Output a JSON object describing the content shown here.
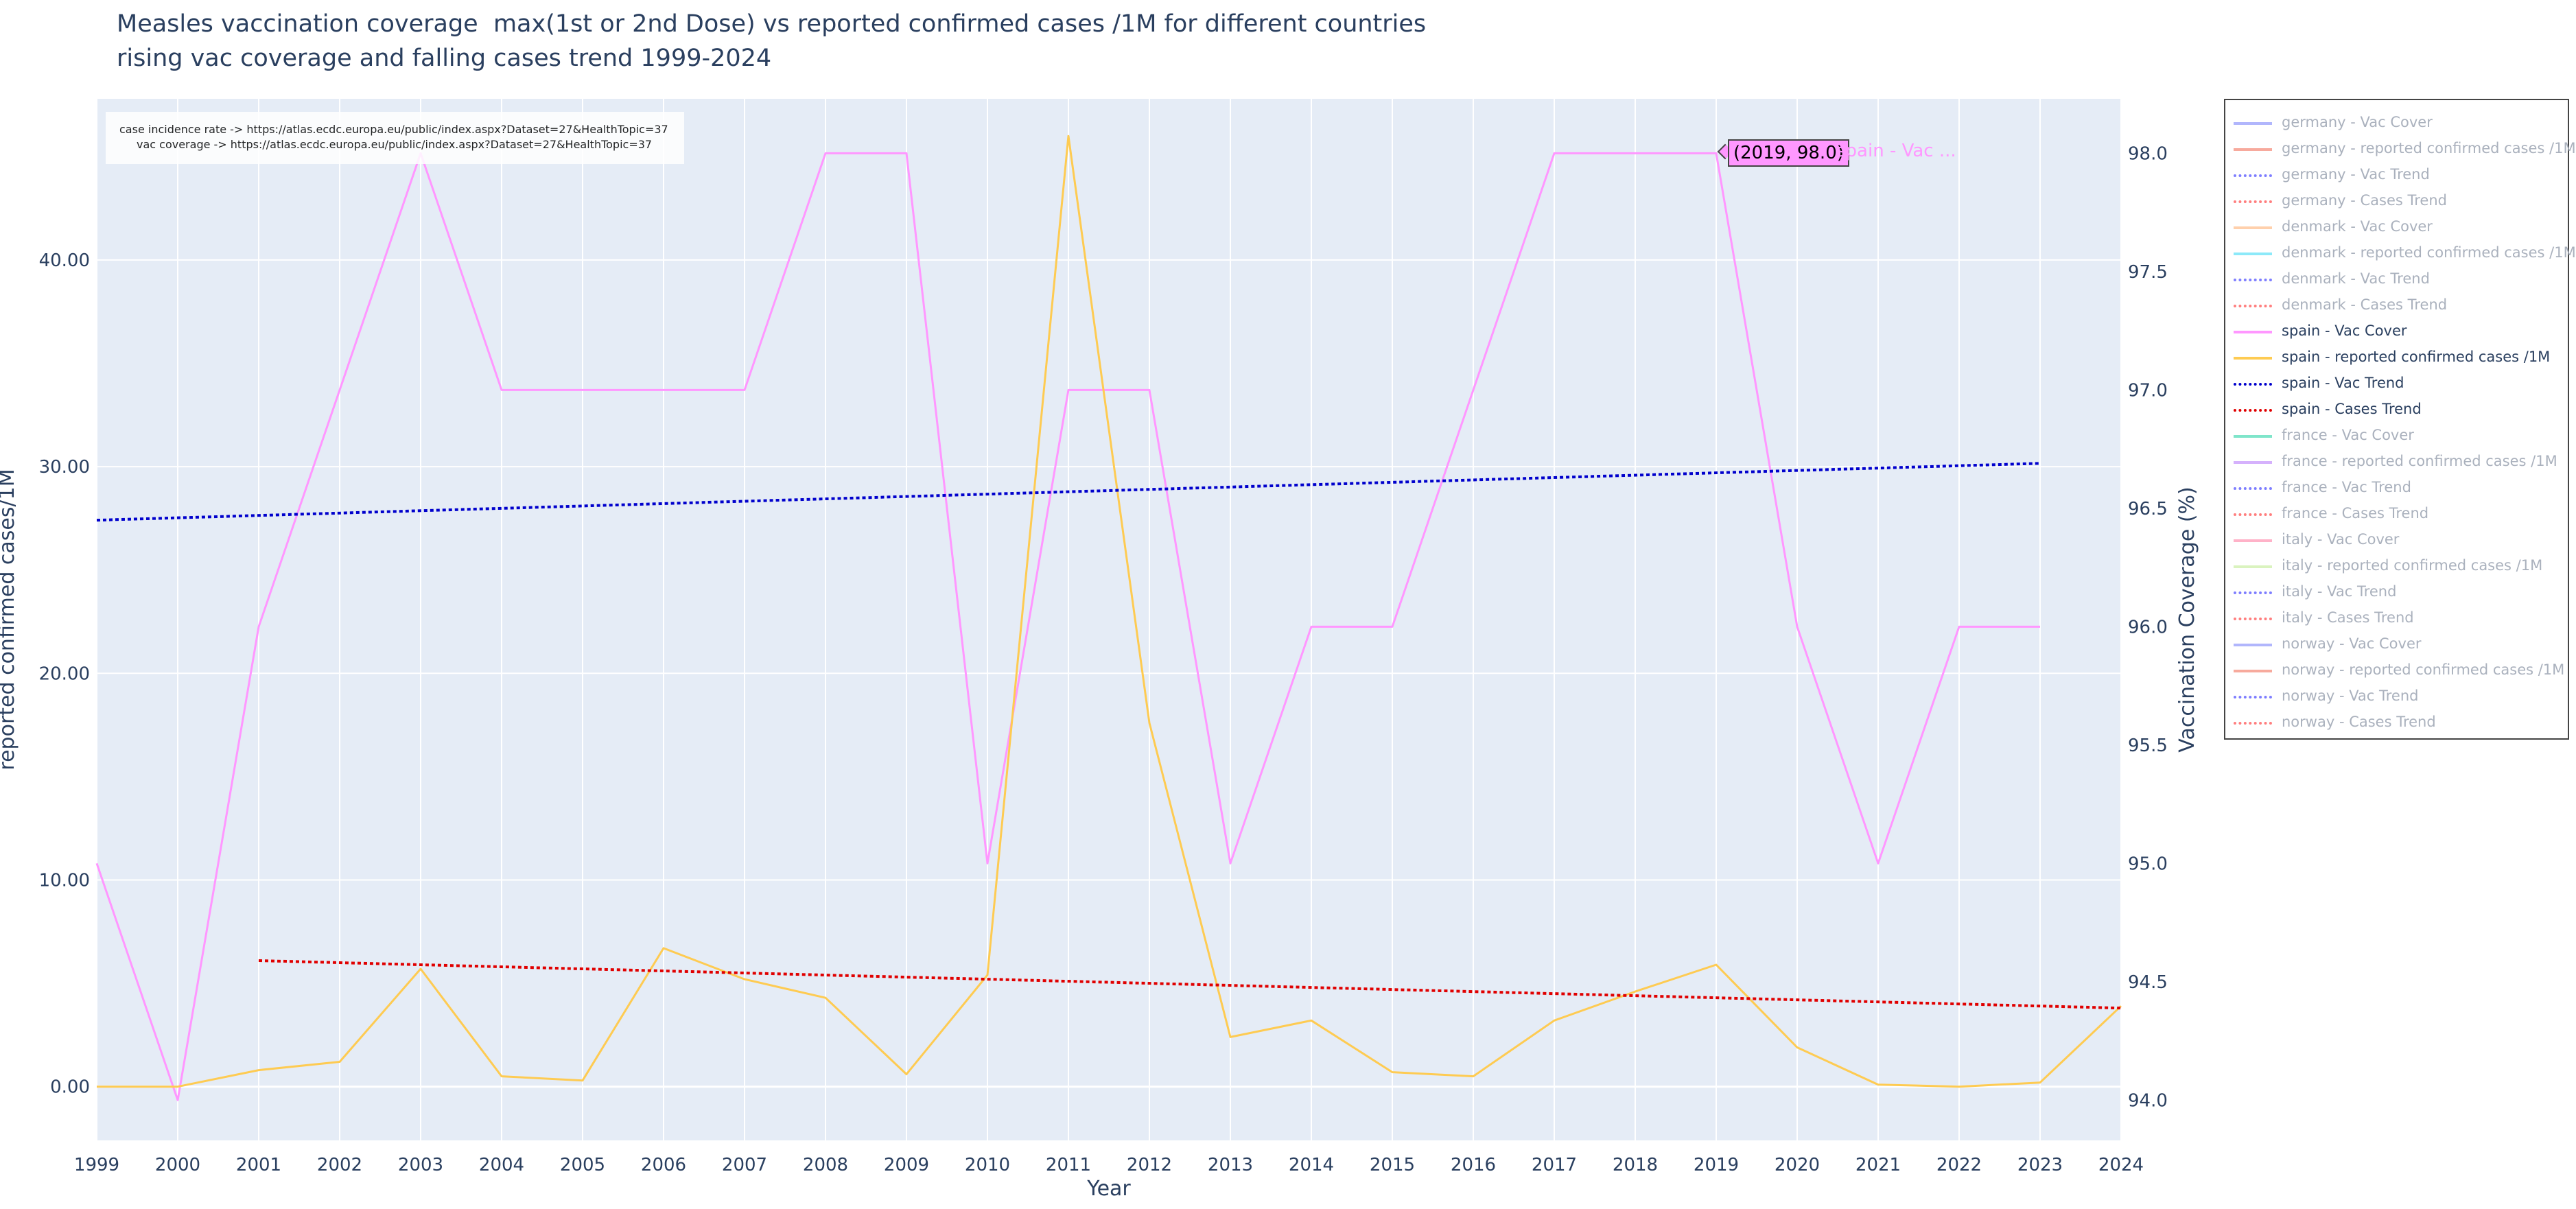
{
  "title": {
    "line1": "Measles vaccination coverage  max(1st or 2nd Dose) vs reported confirmed cases /1M for different countries",
    "line2": "rising vac coverage and falling cases trend 1999-2024"
  },
  "sources": {
    "line1": "case incidence rate -> https://atlas.ecdc.europa.eu/public/index.aspx?Dataset=27&HealthTopic=37",
    "line2": "vac coverage -> https://atlas.ecdc.europa.eu/public/index.aspx?Dataset=27&HealthTopic=37"
  },
  "hover": {
    "label": "(2019, 98.0)",
    "series_name": "spain - Vac ..."
  },
  "colors": {
    "plot_bg": "#e5ecf6",
    "grid": "#ffffff",
    "axis_text": "#2a3f5f",
    "inactive_text": "#aab1bd"
  },
  "legend": [
    {
      "label": "germany - Vac Cover",
      "color": "#636efa",
      "dash": "solid",
      "active": false
    },
    {
      "label": "germany - reported confirmed cases /1M",
      "color": "#ef553b",
      "dash": "solid",
      "active": false
    },
    {
      "label": "germany - Vac Trend",
      "color": "#0000ff",
      "dash": "dot",
      "active": false
    },
    {
      "label": "germany - Cases Trend",
      "color": "#ff0000",
      "dash": "dot",
      "active": false
    },
    {
      "label": "denmark - Vac Cover",
      "color": "#ffa15a",
      "dash": "solid",
      "active": false
    },
    {
      "label": "denmark - reported confirmed cases /1M",
      "color": "#19d3f3",
      "dash": "solid",
      "active": false
    },
    {
      "label": "denmark - Vac Trend",
      "color": "#0000ff",
      "dash": "dot",
      "active": false
    },
    {
      "label": "denmark - Cases Trend",
      "color": "#ff0000",
      "dash": "dot",
      "active": false
    },
    {
      "label": "spain - Vac Cover",
      "color": "#ff97ff",
      "dash": "solid",
      "active": true
    },
    {
      "label": "spain - reported confirmed cases /1M",
      "color": "#fecb52",
      "dash": "solid",
      "active": true
    },
    {
      "label": "spain - Vac Trend",
      "color": "#0000cc",
      "dash": "dot",
      "active": true
    },
    {
      "label": "spain - Cases Trend",
      "color": "#e00000",
      "dash": "dot",
      "active": true
    },
    {
      "label": "france - Vac Cover",
      "color": "#00cc96",
      "dash": "solid",
      "active": false
    },
    {
      "label": "france - reported confirmed cases /1M",
      "color": "#ab63fa",
      "dash": "solid",
      "active": false
    },
    {
      "label": "france - Vac Trend",
      "color": "#0000ff",
      "dash": "dot",
      "active": false
    },
    {
      "label": "france - Cases Trend",
      "color": "#ff0000",
      "dash": "dot",
      "active": false
    },
    {
      "label": "italy - Vac Cover",
      "color": "#ff6692",
      "dash": "solid",
      "active": false
    },
    {
      "label": "italy - reported confirmed cases /1M",
      "color": "#b6e880",
      "dash": "solid",
      "active": false
    },
    {
      "label": "italy - Vac Trend",
      "color": "#0000ff",
      "dash": "dot",
      "active": false
    },
    {
      "label": "italy - Cases Trend",
      "color": "#ff0000",
      "dash": "dot",
      "active": false
    },
    {
      "label": "norway - Vac Cover",
      "color": "#636efa",
      "dash": "solid",
      "active": false
    },
    {
      "label": "norway - reported confirmed cases /1M",
      "color": "#ef553b",
      "dash": "solid",
      "active": false
    },
    {
      "label": "norway - Vac Trend",
      "color": "#0000ff",
      "dash": "dot",
      "active": false
    },
    {
      "label": "norway - Cases Trend",
      "color": "#ff0000",
      "dash": "dot",
      "active": false
    }
  ],
  "chart_data": {
    "type": "line",
    "xlabel": "Year",
    "ylabel_left": "reported confirmed cases/1M",
    "ylabel_right": "Vaccination Coverage (%)",
    "x": [
      1999,
      2000,
      2001,
      2002,
      2003,
      2004,
      2005,
      2006,
      2007,
      2008,
      2009,
      2010,
      2011,
      2012,
      2013,
      2014,
      2015,
      2016,
      2017,
      2018,
      2019,
      2020,
      2021,
      2022,
      2023,
      2024
    ],
    "x_ticks": [
      "1999",
      "2000",
      "2001",
      "2002",
      "2003",
      "2004",
      "2005",
      "2006",
      "2007",
      "2008",
      "2009",
      "2010",
      "2011",
      "2012",
      "2013",
      "2014",
      "2015",
      "2016",
      "2017",
      "2018",
      "2019",
      "2020",
      "2021",
      "2022",
      "2023",
      "2024"
    ],
    "xlim": [
      1999,
      2024
    ],
    "ylim_left": [
      -2.6,
      47.8
    ],
    "ylim_right": [
      93.83,
      98.23
    ],
    "y_ticks_left": [
      0,
      10,
      20,
      30,
      40
    ],
    "y_tick_labels_left": [
      "0.00",
      "10.00",
      "20.00",
      "30.00",
      "40.00"
    ],
    "y_ticks_right": [
      94.0,
      94.5,
      95.0,
      95.5,
      96.0,
      96.5,
      97.0,
      97.5,
      98.0
    ],
    "y_tick_labels_right": [
      "94.0",
      "94.5",
      "95.0",
      "95.5",
      "96.0",
      "96.5",
      "97.0",
      "97.5",
      "98.0"
    ],
    "grid": true,
    "legend_position": "right",
    "series": [
      {
        "name": "spain - Vac Cover",
        "axis": "right",
        "color": "#ff97ff",
        "dash": "solid",
        "x": [
          1999,
          2000,
          2001,
          2002,
          2003,
          2004,
          2005,
          2006,
          2007,
          2008,
          2009,
          2010,
          2011,
          2012,
          2013,
          2014,
          2015,
          2016,
          2017,
          2018,
          2019,
          2020,
          2021,
          2022,
          2023
        ],
        "values": [
          95.0,
          94.0,
          96.0,
          97.0,
          98.0,
          97.0,
          97.0,
          97.0,
          97.0,
          98.0,
          98.0,
          95.0,
          97.0,
          97.0,
          95.0,
          96.0,
          96.0,
          97.0,
          98.0,
          98.0,
          98.0,
          96.0,
          95.0,
          96.0,
          96.0
        ]
      },
      {
        "name": "spain - reported confirmed cases /1M",
        "axis": "left",
        "color": "#fecb52",
        "dash": "solid",
        "x": [
          1999,
          2000,
          2001,
          2002,
          2003,
          2004,
          2005,
          2006,
          2007,
          2008,
          2009,
          2010,
          2011,
          2012,
          2013,
          2014,
          2015,
          2016,
          2017,
          2018,
          2019,
          2020,
          2021,
          2022,
          2023,
          2024
        ],
        "values": [
          0.0,
          0.0,
          0.8,
          1.2,
          5.7,
          0.5,
          0.3,
          6.7,
          5.2,
          4.3,
          0.6,
          5.4,
          46.0,
          17.6,
          2.4,
          3.2,
          0.7,
          0.5,
          3.2,
          4.6,
          5.9,
          1.9,
          0.1,
          0.0,
          0.2,
          3.9
        ]
      },
      {
        "name": "spain - Vac Trend",
        "axis": "right",
        "color": "#0000cc",
        "dash": "dot",
        "x": [
          1999,
          2023
        ],
        "values": [
          96.45,
          96.69
        ]
      },
      {
        "name": "spain - Cases Trend",
        "axis": "left",
        "color": "#e00000",
        "dash": "dot",
        "x": [
          2001,
          2024
        ],
        "values": [
          6.1,
          3.8
        ]
      }
    ]
  }
}
